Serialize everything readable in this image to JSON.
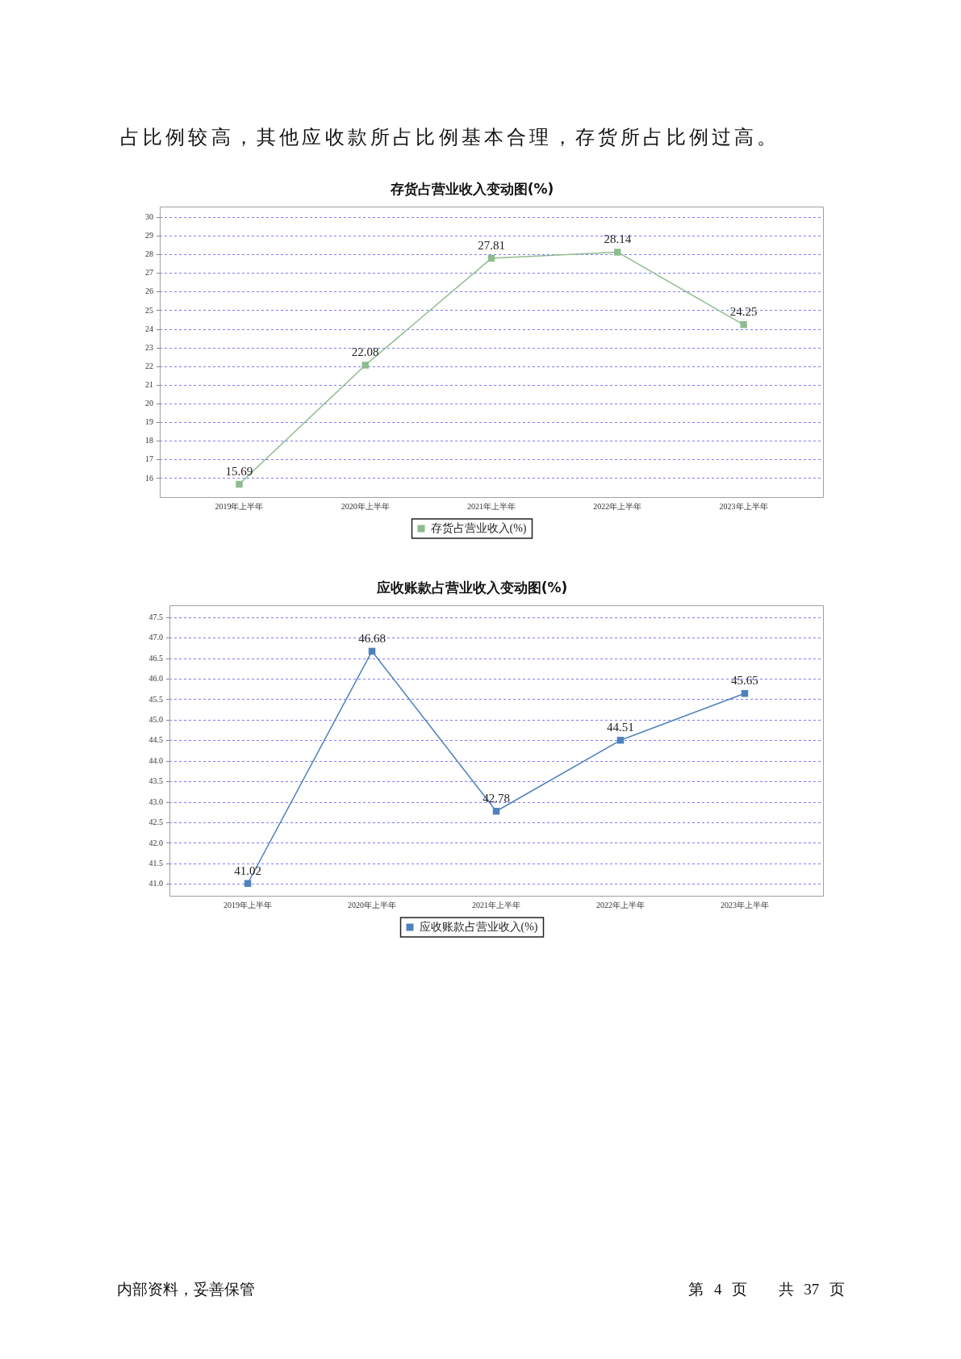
{
  "chart_data": [
    {
      "type": "line",
      "title": "存货占营业收入变动图(%)",
      "categories": [
        "2019年上半年",
        "2020年上半年",
        "2021年上半年",
        "2022年上半年",
        "2023年上半年"
      ],
      "series": [
        {
          "name": "存货占营业收入(%)",
          "color": "#8fbc8f",
          "values": [
            15.69,
            22.08,
            27.81,
            28.14,
            24.25
          ]
        }
      ],
      "ylim": [
        15,
        30.6
      ],
      "yticks": [
        16,
        17,
        18,
        19,
        20,
        21,
        22,
        23,
        24,
        25,
        26,
        27,
        28,
        29,
        30
      ],
      "grid": "y",
      "legend": "bottom",
      "marker": "square",
      "data_labels": true,
      "annotations": [
        "占比例较高，其他应收款所占比例基本合理，存货所占比例过高。"
      ]
    },
    {
      "type": "line",
      "title": "应收账款占营业收入变动图(%)",
      "categories": [
        "2019年上半年",
        "2020年上半年",
        "2021年上半年",
        "2022年上半年",
        "2023年上半年"
      ],
      "series": [
        {
          "name": "应收账款占营业收入(%)",
          "color": "#4f81bd",
          "values": [
            41.02,
            46.68,
            42.78,
            44.51,
            45.65
          ]
        }
      ],
      "ylim": [
        40.72,
        47.8
      ],
      "yticks": [
        {
          "value": 41,
          "label": "41.0"
        },
        41.5,
        {
          "value": 42,
          "label": "42.0"
        },
        42.5,
        {
          "value": 43,
          "label": "43.0"
        },
        43.5,
        {
          "value": 44,
          "label": "44.0"
        },
        44.5,
        {
          "value": 45,
          "label": "45.0"
        },
        45.5,
        {
          "value": 46,
          "label": "46.0"
        },
        46.5,
        {
          "value": 47,
          "label": "47.0"
        },
        47.5
      ],
      "grid": "y",
      "legend": "bottom",
      "marker": "square",
      "data_labels": true,
      "annotations": [
        "内部资料，妥善保管",
        "第 4 页   共 37 页"
      ]
    }
  ]
}
